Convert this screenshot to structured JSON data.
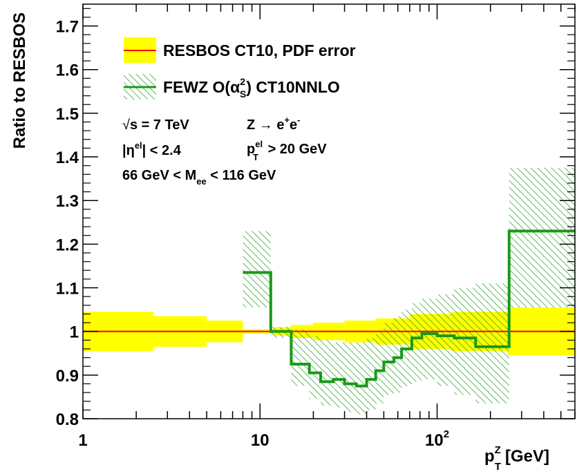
{
  "chart_data": {
    "type": "step",
    "xscale": "log",
    "xlim": [
      1,
      600
    ],
    "ylim": [
      0.8,
      1.75
    ],
    "xlabel": "p_T^Z [GeV]",
    "xlabel_main": "p",
    "xlabel_sub": "T",
    "xlabel_sup": "Z",
    "xlabel_unit": "[GeV]",
    "ylabel": "Ratio to RESBOS",
    "yticks": [
      0.8,
      0.9,
      1,
      1.1,
      1.2,
      1.3,
      1.4,
      1.5,
      1.6,
      1.7
    ],
    "ytick_labels": [
      "0.8",
      "0.9",
      "1",
      "1.1",
      "1.2",
      "1.3",
      "1.4",
      "1.5",
      "1.6",
      "1.7"
    ],
    "xticks": [
      {
        "value": 1,
        "label": "1"
      },
      {
        "value": 10,
        "label": "10"
      },
      {
        "value": 100,
        "label": "10",
        "sup": "2"
      }
    ],
    "legend_position": "top-left",
    "legend": [
      {
        "label": "RESBOS CT10, PDF error",
        "style": "yellow-band-red-line"
      },
      {
        "label_main": "FEWZ O(α",
        "label_sub": "S",
        "label_sup": "2",
        "label_end": ") CT10NNLO",
        "style": "hatched-green-band-green-line"
      }
    ],
    "annotations": {
      "energy_sqrt": "√",
      "energy_rest": "s = 7 TeV",
      "process_main": "Z → e",
      "process_sup1": "+",
      "process_mid": "e",
      "process_sup2": "-",
      "eta_prefix": "|η",
      "eta_sup": "el",
      "eta_suffix": "| < 2.4",
      "pt_main": "p",
      "pt_sup": "el",
      "pt_sub": "T",
      "pt_suffix": " > 20 GeV",
      "mass_prefix": "66 GeV < M",
      "mass_sub": "ee",
      "mass_suffix": " < 116 GeV"
    },
    "series": [
      {
        "name": "RESBOS CT10, PDF error",
        "central": 1.0,
        "color": "#ff0000",
        "band_color": "#ffff00",
        "band_bins": [
          {
            "x0": 1,
            "x1": 2.5,
            "lo": 0.955,
            "hi": 1.045
          },
          {
            "x0": 2.5,
            "x1": 5,
            "lo": 0.965,
            "hi": 1.035
          },
          {
            "x0": 5,
            "x1": 8,
            "lo": 0.975,
            "hi": 1.025
          },
          {
            "x0": 8,
            "x1": 12,
            "lo": 0.995,
            "hi": 1.005
          },
          {
            "x0": 12,
            "x1": 15,
            "lo": 0.99,
            "hi": 1.01
          },
          {
            "x0": 15,
            "x1": 20,
            "lo": 0.985,
            "hi": 1.015
          },
          {
            "x0": 20,
            "x1": 30,
            "lo": 0.98,
            "hi": 1.02
          },
          {
            "x0": 30,
            "x1": 45,
            "lo": 0.975,
            "hi": 1.025
          },
          {
            "x0": 45,
            "x1": 70,
            "lo": 0.97,
            "hi": 1.03
          },
          {
            "x0": 70,
            "x1": 120,
            "lo": 0.96,
            "hi": 1.04
          },
          {
            "x0": 120,
            "x1": 250,
            "lo": 0.955,
            "hi": 1.045
          },
          {
            "x0": 250,
            "x1": 600,
            "lo": 0.945,
            "hi": 1.055
          }
        ]
      },
      {
        "name": "FEWZ O(αS²) CT10NNLO",
        "color": "#1a9a1a",
        "bins": [
          {
            "x0": 8,
            "x1": 11.5,
            "y": 1.135,
            "lo": 1.055,
            "hi": 1.23
          },
          {
            "x0": 11.5,
            "x1": 15,
            "y": 1.0,
            "lo": 0.985,
            "hi": 1.01
          },
          {
            "x0": 15,
            "x1": 19,
            "y": 0.925,
            "lo": 0.875,
            "hi": 1.005
          },
          {
            "x0": 19,
            "x1": 22,
            "y": 0.905,
            "lo": 0.845,
            "hi": 0.99
          },
          {
            "x0": 22,
            "x1": 26,
            "y": 0.885,
            "lo": 0.83,
            "hi": 0.98
          },
          {
            "x0": 26,
            "x1": 30,
            "y": 0.89,
            "lo": 0.825,
            "hi": 0.975
          },
          {
            "x0": 30,
            "x1": 35,
            "y": 0.88,
            "lo": 0.815,
            "hi": 0.975
          },
          {
            "x0": 35,
            "x1": 40,
            "y": 0.875,
            "lo": 0.81,
            "hi": 0.975
          },
          {
            "x0": 40,
            "x1": 45,
            "y": 0.89,
            "lo": 0.82,
            "hi": 0.985
          },
          {
            "x0": 45,
            "x1": 50,
            "y": 0.91,
            "lo": 0.835,
            "hi": 1.0
          },
          {
            "x0": 50,
            "x1": 57,
            "y": 0.93,
            "lo": 0.855,
            "hi": 1.02
          },
          {
            "x0": 57,
            "x1": 63,
            "y": 0.94,
            "lo": 0.86,
            "hi": 1.035
          },
          {
            "x0": 63,
            "x1": 72,
            "y": 0.96,
            "lo": 0.875,
            "hi": 1.05
          },
          {
            "x0": 72,
            "x1": 82,
            "y": 0.985,
            "lo": 0.885,
            "hi": 1.065
          },
          {
            "x0": 82,
            "x1": 100,
            "y": 0.995,
            "lo": 0.89,
            "hi": 1.075
          },
          {
            "x0": 100,
            "x1": 125,
            "y": 0.99,
            "lo": 0.875,
            "hi": 1.085
          },
          {
            "x0": 125,
            "x1": 165,
            "y": 0.985,
            "lo": 0.855,
            "hi": 1.1
          },
          {
            "x0": 165,
            "x1": 255,
            "y": 0.965,
            "lo": 0.835,
            "hi": 1.11
          },
          {
            "x0": 255,
            "x1": 600,
            "y": 1.23,
            "lo": 1.055,
            "hi": 1.375
          }
        ]
      }
    ]
  }
}
